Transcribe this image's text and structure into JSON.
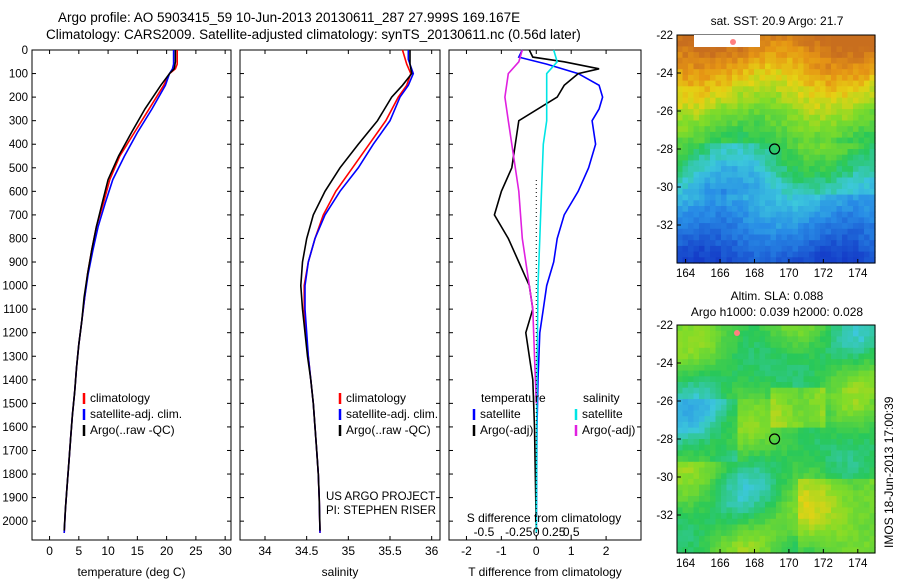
{
  "header": {
    "title_line1": "Argo profile: AO 5903415_59 10-Jun-2013 20130611_287 27.999S 169.167E",
    "title_line2": "Climatology: CARS2009. Satellite-adjusted climatology: synTS_20130611.nc (0.56d later)"
  },
  "side_stamp": "IMOS 18-Jun-2013 17:00:39",
  "colors": {
    "climatology": "#ff0000",
    "satellite": "#0000ff",
    "argo": "#000000",
    "salinity_sat": "#00e5e5",
    "salinity_argo": "#e020e0"
  },
  "chart_data": [
    {
      "type": "line",
      "id": "temperature",
      "xlabel": "temperature (deg C)",
      "xlim": [
        -3,
        31
      ],
      "ylim": [
        2080,
        0
      ],
      "xticks": [
        0,
        5,
        10,
        15,
        20,
        25,
        30
      ],
      "yticks": [
        0,
        100,
        200,
        300,
        400,
        500,
        600,
        700,
        800,
        900,
        1000,
        1100,
        1200,
        1300,
        1400,
        1500,
        1600,
        1700,
        1800,
        1900,
        2000
      ],
      "legend": [
        "climatology",
        "satellite-adj. clim.",
        "Argo(..raw -QC)"
      ],
      "series": [
        {
          "name": "climatology",
          "color": "#ff0000",
          "points": [
            [
              21.8,
              0
            ],
            [
              21.8,
              60
            ],
            [
              21.5,
              80
            ],
            [
              20.5,
              100
            ],
            [
              19.5,
              150
            ],
            [
              17,
              250
            ],
            [
              14.5,
              350
            ],
            [
              12,
              450
            ],
            [
              10.3,
              550
            ],
            [
              9.2,
              650
            ],
            [
              8,
              750
            ],
            [
              7.2,
              850
            ],
            [
              6.5,
              950
            ],
            [
              6,
              1050
            ],
            [
              5.5,
              1150
            ],
            [
              5,
              1250
            ],
            [
              4.6,
              1350
            ],
            [
              4.3,
              1450
            ],
            [
              3.9,
              1550
            ],
            [
              3.6,
              1650
            ],
            [
              3.3,
              1750
            ],
            [
              3,
              1850
            ],
            [
              2.7,
              1950
            ],
            [
              2.5,
              2050
            ]
          ]
        },
        {
          "name": "satellite-adj. clim.",
          "color": "#0000ff",
          "points": [
            [
              21.2,
              0
            ],
            [
              21.2,
              60
            ],
            [
              21,
              80
            ],
            [
              20.5,
              100
            ],
            [
              19.8,
              150
            ],
            [
              17.5,
              250
            ],
            [
              15,
              350
            ],
            [
              12.8,
              450
            ],
            [
              10.8,
              550
            ],
            [
              9.5,
              650
            ],
            [
              8.3,
              750
            ],
            [
              7.4,
              850
            ],
            [
              6.6,
              950
            ],
            [
              6,
              1050
            ],
            [
              5.5,
              1150
            ],
            [
              5,
              1250
            ],
            [
              4.6,
              1350
            ],
            [
              4.3,
              1450
            ],
            [
              3.9,
              1550
            ],
            [
              3.6,
              1650
            ],
            [
              3.3,
              1750
            ],
            [
              3,
              1850
            ],
            [
              2.7,
              1950
            ],
            [
              2.5,
              2050
            ]
          ]
        },
        {
          "name": "Argo(..raw -QC)",
          "color": "#000000",
          "points": [
            [
              21.5,
              0
            ],
            [
              21.5,
              50
            ],
            [
              21.3,
              80
            ],
            [
              20.5,
              100
            ],
            [
              19,
              150
            ],
            [
              16.3,
              250
            ],
            [
              14,
              350
            ],
            [
              11.8,
              450
            ],
            [
              10,
              550
            ],
            [
              9,
              650
            ],
            [
              8,
              750
            ],
            [
              7.2,
              850
            ],
            [
              6.5,
              950
            ],
            [
              5.9,
              1050
            ],
            [
              5.5,
              1150
            ],
            [
              5,
              1250
            ],
            [
              4.6,
              1350
            ],
            [
              4.3,
              1450
            ],
            [
              3.9,
              1550
            ],
            [
              3.6,
              1650
            ],
            [
              3.3,
              1750
            ],
            [
              3,
              1850
            ],
            [
              2.7,
              1950
            ],
            [
              2.5,
              2040
            ]
          ]
        }
      ]
    },
    {
      "type": "line",
      "id": "salinity",
      "xlabel": "salinity",
      "xlim": [
        33.7,
        36.1
      ],
      "ylim": [
        2080,
        0
      ],
      "xticks": [
        34,
        34.5,
        35,
        35.5,
        36
      ],
      "legend": [
        "climatology",
        "satellite-adj. clim.",
        "Argo(..raw -QC)"
      ],
      "annotation": [
        "US ARGO PROJECT",
        "PI: STEPHEN RISER"
      ],
      "series": [
        {
          "name": "climatology",
          "color": "#ff0000",
          "points": [
            [
              35.65,
              0
            ],
            [
              35.7,
              60
            ],
            [
              35.75,
              100
            ],
            [
              35.7,
              150
            ],
            [
              35.6,
              200
            ],
            [
              35.45,
              300
            ],
            [
              35.25,
              400
            ],
            [
              35.05,
              500
            ],
            [
              34.85,
              600
            ],
            [
              34.7,
              700
            ],
            [
              34.6,
              800
            ],
            [
              34.52,
              900
            ],
            [
              34.47,
              1000
            ],
            [
              34.47,
              1100
            ],
            [
              34.49,
              1200
            ],
            [
              34.52,
              1300
            ],
            [
              34.55,
              1400
            ],
            [
              34.58,
              1500
            ],
            [
              34.6,
              1600
            ],
            [
              34.62,
              1700
            ],
            [
              34.64,
              1800
            ],
            [
              34.65,
              1900
            ],
            [
              34.66,
              2050
            ]
          ]
        },
        {
          "name": "satellite-adj. clim.",
          "color": "#0000ff",
          "points": [
            [
              35.72,
              0
            ],
            [
              35.72,
              40
            ],
            [
              35.78,
              100
            ],
            [
              35.72,
              150
            ],
            [
              35.62,
              200
            ],
            [
              35.5,
              300
            ],
            [
              35.3,
              400
            ],
            [
              35.12,
              500
            ],
            [
              34.9,
              600
            ],
            [
              34.72,
              700
            ],
            [
              34.6,
              800
            ],
            [
              34.52,
              900
            ],
            [
              34.48,
              1000
            ],
            [
              34.48,
              1100
            ],
            [
              34.5,
              1200
            ],
            [
              34.52,
              1300
            ],
            [
              34.55,
              1400
            ],
            [
              34.58,
              1500
            ],
            [
              34.6,
              1600
            ],
            [
              34.62,
              1700
            ],
            [
              34.64,
              1800
            ],
            [
              34.65,
              1900
            ],
            [
              34.66,
              2050
            ]
          ]
        },
        {
          "name": "Argo(..raw -QC)",
          "color": "#000000",
          "points": [
            [
              35.74,
              0
            ],
            [
              35.74,
              60
            ],
            [
              35.76,
              100
            ],
            [
              35.65,
              150
            ],
            [
              35.52,
              200
            ],
            [
              35.35,
              300
            ],
            [
              35.12,
              400
            ],
            [
              34.9,
              500
            ],
            [
              34.72,
              600
            ],
            [
              34.58,
              700
            ],
            [
              34.5,
              800
            ],
            [
              34.45,
              900
            ],
            [
              34.43,
              1000
            ],
            [
              34.45,
              1100
            ],
            [
              34.48,
              1200
            ],
            [
              34.51,
              1300
            ],
            [
              34.55,
              1400
            ],
            [
              34.58,
              1500
            ],
            [
              34.6,
              1600
            ],
            [
              34.62,
              1700
            ],
            [
              34.64,
              1800
            ],
            [
              34.65,
              1900
            ],
            [
              34.66,
              2040
            ]
          ]
        }
      ]
    },
    {
      "type": "line",
      "id": "differences",
      "xlabel": "T difference from climatology",
      "xlabel_top": "S difference from climatology",
      "xlim": [
        -2.5,
        3
      ],
      "ylim": [
        2080,
        0
      ],
      "xticks": [
        -2,
        -1,
        0,
        1,
        2
      ],
      "secondary_xticks": [
        "-0.5",
        "-0.25",
        "0",
        "0.25",
        "0.5"
      ],
      "legend_temperature": {
        "title": "temperature",
        "items": [
          "satellite",
          "Argo(-adj)"
        ]
      },
      "legend_salinity": {
        "title": "salinity",
        "items": [
          "satellite",
          "Argo(-adj)"
        ]
      },
      "series": [
        {
          "name": "temperature satellite",
          "color": "#0000ff",
          "points": [
            [
              -0.4,
              0
            ],
            [
              -0.5,
              30
            ],
            [
              0.3,
              60
            ],
            [
              1.2,
              100
            ],
            [
              1.8,
              150
            ],
            [
              1.9,
              200
            ],
            [
              1.8,
              250
            ],
            [
              1.6,
              300
            ],
            [
              1.7,
              400
            ],
            [
              1.5,
              500
            ],
            [
              1.2,
              600
            ],
            [
              0.8,
              700
            ],
            [
              0.6,
              800
            ],
            [
              0.5,
              900
            ],
            [
              0.3,
              1000
            ],
            [
              0.2,
              1100
            ],
            [
              0.1,
              1200
            ],
            [
              0.05,
              1400
            ],
            [
              0.02,
              1600
            ],
            [
              0,
              2050
            ]
          ]
        },
        {
          "name": "temperature Argo(-adj)",
          "color": "#000000",
          "points": [
            [
              -0.2,
              0
            ],
            [
              -0.1,
              30
            ],
            [
              0.8,
              50
            ],
            [
              1.8,
              80
            ],
            [
              1.2,
              100
            ],
            [
              0.8,
              150
            ],
            [
              0.6,
              200
            ],
            [
              -0.5,
              300
            ],
            [
              -0.6,
              400
            ],
            [
              -0.7,
              500
            ],
            [
              -1,
              600
            ],
            [
              -1.2,
              700
            ],
            [
              -0.8,
              800
            ],
            [
              -0.5,
              900
            ],
            [
              -0.2,
              1000
            ],
            [
              -0.1,
              1100
            ],
            [
              -0.3,
              1200
            ],
            [
              -0.2,
              1300
            ],
            [
              -0.1,
              1400
            ],
            [
              -0.05,
              1600
            ],
            [
              0,
              2040
            ]
          ]
        },
        {
          "name": "salinity satellite",
          "color": "#00e5e5",
          "points": [
            [
              0.5,
              0
            ],
            [
              0.6,
              50
            ],
            [
              0.3,
              100
            ],
            [
              0.3,
              200
            ],
            [
              0.3,
              300
            ],
            [
              0.2,
              400
            ],
            [
              0.15,
              600
            ],
            [
              0.1,
              800
            ],
            [
              0.05,
              1000
            ],
            [
              0.02,
              1400
            ],
            [
              0,
              2050
            ]
          ]
        },
        {
          "name": "salinity Argo(-adj)",
          "color": "#e020e0",
          "points": [
            [
              -0.4,
              0
            ],
            [
              -0.5,
              50
            ],
            [
              -0.8,
              100
            ],
            [
              -0.9,
              200
            ],
            [
              -0.8,
              300
            ],
            [
              -0.7,
              400
            ],
            [
              -0.5,
              600
            ],
            [
              -0.4,
              800
            ],
            [
              -0.2,
              1000
            ],
            [
              -0.1,
              1100
            ],
            [
              -0.05,
              1300
            ],
            [
              0,
              1500
            ]
          ]
        }
      ]
    },
    {
      "type": "heatmap",
      "id": "sst-map",
      "title": "sat. SST: 20.9  Argo: 21.7",
      "xlim": [
        163.5,
        175
      ],
      "ylim": [
        -34,
        -22
      ],
      "xticks": [
        164,
        166,
        168,
        170,
        172,
        174
      ],
      "yticks": [
        -22,
        -24,
        -26,
        -28,
        -30,
        -32
      ],
      "marker": [
        169.167,
        -27.999
      ]
    },
    {
      "type": "heatmap",
      "id": "sla-map",
      "title": "Altim. SLA: 0.088",
      "subtitle": "Argo h1000: 0.039  h2000: 0.028",
      "xlim": [
        163.5,
        175
      ],
      "ylim": [
        -34,
        -22
      ],
      "xticks": [
        164,
        166,
        168,
        170,
        172,
        174
      ],
      "yticks": [
        -22,
        -24,
        -26,
        -28,
        -30,
        -32
      ],
      "marker": [
        169.167,
        -27.999
      ]
    }
  ]
}
